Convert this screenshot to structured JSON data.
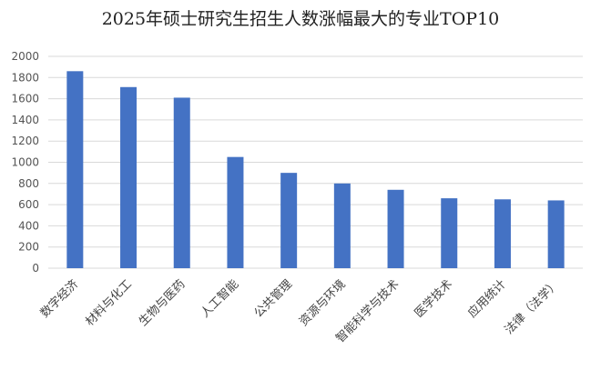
{
  "chart_data": {
    "type": "bar",
    "title": "2025年硕士研究生招生人数涨幅最大的专业TOP10",
    "xlabel": "",
    "ylabel": "",
    "ylim": [
      0,
      2000
    ],
    "yticks": [
      0,
      200,
      400,
      600,
      800,
      1000,
      1200,
      1400,
      1600,
      1800,
      2000
    ],
    "grid": true,
    "legend": "none",
    "bar_color": "#4472C4",
    "categories": [
      "数字经济",
      "材料与化工",
      "生物与医药",
      "人工智能",
      "公共管理",
      "资源与环境",
      "智能科学与技术",
      "医学技术",
      "应用统计",
      "法律（法学）"
    ],
    "values": [
      1860,
      1710,
      1610,
      1050,
      900,
      800,
      740,
      660,
      650,
      640
    ]
  }
}
